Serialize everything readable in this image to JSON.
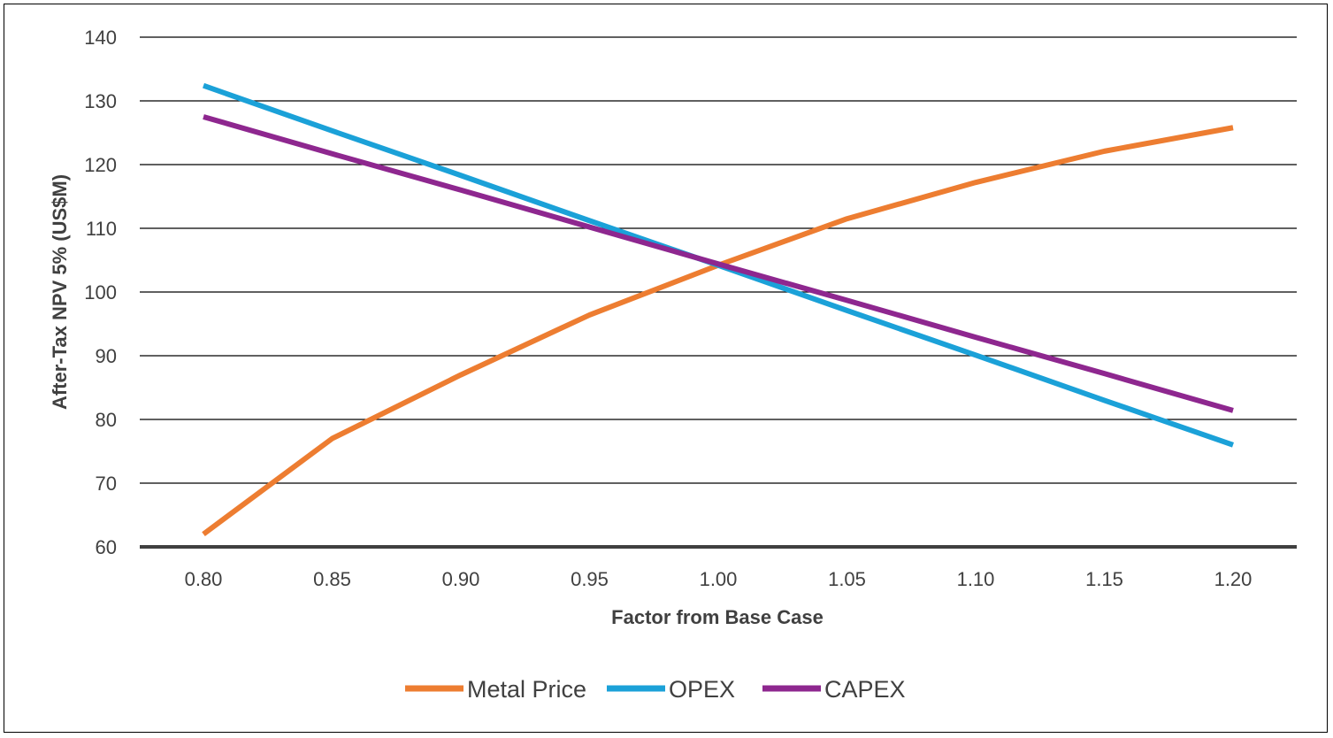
{
  "chart_data": {
    "type": "line",
    "title": "",
    "xlabel": "Factor from Base Case",
    "ylabel": "After-Tax NPV 5% (US$M)",
    "x": [
      "0.80",
      "0.85",
      "0.90",
      "0.95",
      "1.00",
      "1.05",
      "1.10",
      "1.15",
      "1.20"
    ],
    "ylim": [
      60,
      140
    ],
    "yticks": [
      "60",
      "70",
      "80",
      "90",
      "100",
      "110",
      "120",
      "130",
      "140"
    ],
    "grid": true,
    "legend": "bottom",
    "series": [
      {
        "name": "Metal Price",
        "color": "#ED7D31",
        "values": [
          62,
          77,
          87,
          96.4,
          104.2,
          111.5,
          117.2,
          122.1,
          125.8
        ]
      },
      {
        "name": "OPEX",
        "color": "#1BA1D8",
        "values": [
          132.4,
          125.3,
          118.3,
          111.2,
          104.2,
          97.1,
          90.1,
          83.0,
          76.0
        ]
      },
      {
        "name": "CAPEX",
        "color": "#8E278F",
        "values": [
          127.5,
          121.7,
          116.0,
          110.2,
          104.4,
          98.7,
          92.9,
          87.2,
          81.4
        ]
      }
    ]
  }
}
